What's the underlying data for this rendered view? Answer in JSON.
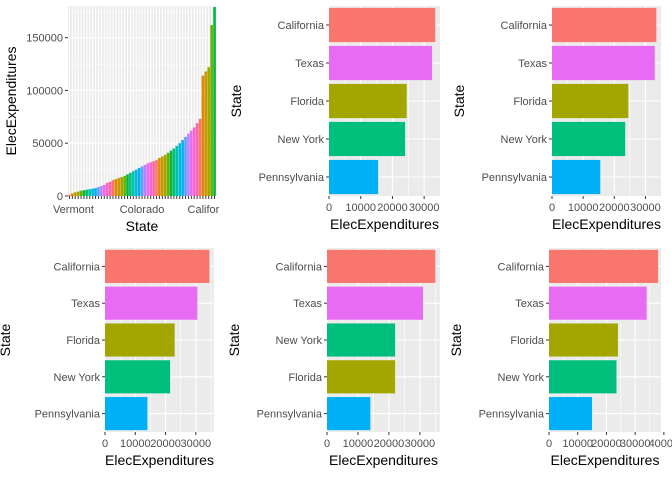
{
  "chart_data": [
    {
      "type": "bar",
      "orientation": "vertical",
      "xlabel": "State",
      "ylabel": "ElecExpenditures",
      "x_tick_labels": [
        "Vermont",
        "Colorado",
        "Califor"
      ],
      "y_ticks": [
        0,
        50000,
        100000,
        150000
      ],
      "ylim": [
        0,
        180000
      ],
      "n_categories": 51,
      "values": [
        1200,
        2500,
        3500,
        4200,
        5000,
        5500,
        6000,
        6500,
        7000,
        7500,
        8500,
        9500,
        10500,
        12500,
        13500,
        15000,
        16000,
        17000,
        18000,
        19000,
        20500,
        22000,
        23500,
        25000,
        26500,
        28000,
        29500,
        31000,
        32000,
        33000,
        34000,
        36000,
        37500,
        39000,
        41000,
        43000,
        45000,
        47500,
        50000,
        53000,
        56000,
        59000,
        62000,
        65000,
        69000,
        73000,
        114000,
        118000,
        122000,
        162000,
        179000
      ],
      "colors": [
        "#f8766d",
        "#e58700",
        "#c99800",
        "#a3a500",
        "#6bb100",
        "#00ba38",
        "#00bf7d",
        "#00c0af",
        "#00bcd8",
        "#00b0f6",
        "#619cff",
        "#b983ff",
        "#e76bf3",
        "#fd61d1",
        "#ff67a4"
      ],
      "grid": true
    },
    {
      "type": "bar",
      "orientation": "horizontal",
      "categories": [
        "California",
        "Texas",
        "Florida",
        "New York",
        "Pennsylvania"
      ],
      "values": [
        33500,
        32500,
        24500,
        24000,
        15500
      ],
      "colors": [
        "#f8766d",
        "#e76bf3",
        "#a3a500",
        "#00bf7d",
        "#00b0f6"
      ],
      "x_ticks": [
        0,
        10000,
        20000,
        30000
      ],
      "x_tick_labels": [
        "0",
        "10000",
        "20000",
        "30000"
      ],
      "xlim": [
        0,
        35000
      ],
      "xlabel": "ElecExpenditures",
      "ylabel": "State",
      "grid": true
    },
    {
      "type": "bar",
      "orientation": "horizontal",
      "categories": [
        "California",
        "Texas",
        "Florida",
        "New York",
        "Pennsylvania"
      ],
      "values": [
        33500,
        33000,
        24500,
        23500,
        15500
      ],
      "colors": [
        "#f8766d",
        "#e76bf3",
        "#a3a500",
        "#00bf7d",
        "#00b0f6"
      ],
      "x_ticks": [
        0,
        10000,
        20000,
        30000
      ],
      "x_tick_labels": [
        "0",
        "10000",
        "20000",
        "30000"
      ],
      "xlim": [
        0,
        35000
      ],
      "xlabel": "ElecExpenditures",
      "ylabel": "State",
      "grid": true
    },
    {
      "type": "bar",
      "orientation": "horizontal",
      "categories": [
        "California",
        "Texas",
        "Florida",
        "New York",
        "Pennsylvania"
      ],
      "values": [
        34500,
        30500,
        23000,
        21500,
        14000
      ],
      "colors": [
        "#f8766d",
        "#e76bf3",
        "#a3a500",
        "#00bf7d",
        "#00b0f6"
      ],
      "x_ticks": [
        0,
        10000,
        20000,
        30000
      ],
      "x_tick_labels": [
        "0",
        "10000",
        "20000",
        "30000"
      ],
      "xlim": [
        0,
        36000
      ],
      "xlabel": "ElecExpenditures",
      "ylabel": "State",
      "grid": true
    },
    {
      "type": "bar",
      "orientation": "horizontal",
      "categories": [
        "California",
        "Texas",
        "New York",
        "Florida",
        "Pennsylvania"
      ],
      "values": [
        35000,
        31000,
        22000,
        22000,
        14000
      ],
      "colors": [
        "#f8766d",
        "#e76bf3",
        "#00bf7d",
        "#a3a500",
        "#00b0f6"
      ],
      "x_ticks": [
        0,
        10000,
        20000,
        30000
      ],
      "x_tick_labels": [
        "0",
        "10000",
        "20000",
        "30000"
      ],
      "xlim": [
        0,
        36500
      ],
      "xlabel": "ElecExpenditures",
      "ylabel": "State",
      "grid": true
    },
    {
      "type": "bar",
      "orientation": "horizontal",
      "categories": [
        "California",
        "Texas",
        "Florida",
        "New York",
        "Pennsylvania"
      ],
      "values": [
        38000,
        34000,
        24000,
        23500,
        15000
      ],
      "colors": [
        "#f8766d",
        "#e76bf3",
        "#a3a500",
        "#00bf7d",
        "#00b0f6"
      ],
      "x_ticks": [
        0,
        10000,
        20000,
        30000,
        40000
      ],
      "x_tick_labels": [
        "0",
        "10000",
        "20000",
        "30000",
        "40000"
      ],
      "xlim": [
        0,
        39000
      ],
      "xlabel": "ElecExpenditures",
      "ylabel": "State",
      "grid": true
    }
  ]
}
